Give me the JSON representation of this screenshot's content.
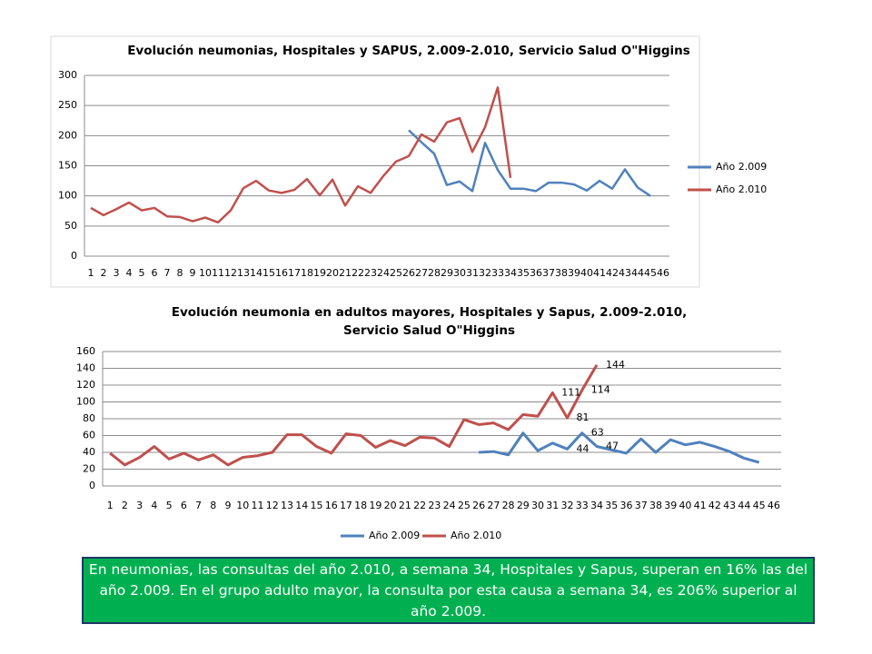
{
  "chart_data": [
    {
      "type": "line",
      "title": "Evolución neumonias, Hospitales y SAPUS, 2.009-2.010, Servicio Salud O\"Higgins",
      "categories": [
        "1",
        "2",
        "3",
        "4",
        "5",
        "6",
        "7",
        "8",
        "9",
        "10",
        "11",
        "12",
        "13",
        "14",
        "15",
        "16",
        "17",
        "18",
        "19",
        "20",
        "21",
        "22",
        "23",
        "24",
        "25",
        "26",
        "27",
        "28",
        "29",
        "30",
        "31",
        "32",
        "33",
        "34",
        "35",
        "36",
        "37",
        "38",
        "39",
        "40",
        "41",
        "42",
        "43",
        "44",
        "45",
        "46"
      ],
      "series": [
        {
          "name": "Año 2.009",
          "color": "#4f81bd",
          "values": [
            null,
            null,
            null,
            null,
            null,
            null,
            null,
            null,
            null,
            null,
            null,
            null,
            null,
            null,
            null,
            null,
            null,
            null,
            null,
            null,
            null,
            null,
            null,
            null,
            null,
            209,
            189,
            170,
            118,
            124,
            108,
            188,
            143,
            112,
            112,
            108,
            122,
            122,
            119,
            109,
            125,
            112,
            144,
            114,
            100,
            null
          ]
        },
        {
          "name": "Año 2.010",
          "color": "#c0504d",
          "values": [
            80,
            68,
            78,
            89,
            76,
            80,
            66,
            65,
            58,
            64,
            56,
            76,
            113,
            125,
            109,
            105,
            110,
            128,
            101,
            127,
            84,
            116,
            105,
            133,
            157,
            166,
            202,
            190,
            222,
            229,
            173,
            214,
            280,
            130,
            null,
            null,
            null,
            null,
            null,
            null,
            null,
            null,
            null,
            null,
            null,
            null
          ]
        }
      ],
      "ylim": [
        0,
        300
      ],
      "yticks": [
        0,
        50,
        100,
        150,
        200,
        250,
        300
      ],
      "grid": true,
      "legend": "right"
    },
    {
      "type": "line",
      "title": "Evolución neumonia en adultos mayores, Hospitales y Sapus, 2.009-2.010, Servicio Salud O\"Higgins",
      "categories": [
        "1",
        "2",
        "3",
        "4",
        "5",
        "6",
        "7",
        "8",
        "9",
        "10",
        "11",
        "12",
        "13",
        "14",
        "15",
        "16",
        "17",
        "18",
        "19",
        "20",
        "21",
        "22",
        "23",
        "24",
        "25",
        "26",
        "27",
        "28",
        "29",
        "30",
        "31",
        "32",
        "33",
        "34",
        "35",
        "36",
        "37",
        "38",
        "39",
        "40",
        "41",
        "42",
        "43",
        "44",
        "45",
        "46"
      ],
      "series": [
        {
          "name": "Año 2.009",
          "color": "#4f81bd",
          "values": [
            null,
            null,
            null,
            null,
            null,
            null,
            null,
            null,
            null,
            null,
            null,
            null,
            null,
            null,
            null,
            null,
            null,
            null,
            null,
            null,
            null,
            null,
            null,
            null,
            null,
            40,
            41,
            37,
            63,
            42,
            51,
            44,
            63,
            47,
            43,
            39,
            56,
            40,
            55,
            49,
            52,
            47,
            41,
            33,
            28,
            null
          ],
          "value_labels": [
            null,
            null,
            null,
            null,
            null,
            null,
            null,
            null,
            null,
            null,
            null,
            null,
            null,
            null,
            null,
            null,
            null,
            null,
            null,
            null,
            null,
            null,
            null,
            null,
            null,
            null,
            null,
            null,
            null,
            null,
            null,
            "44",
            "63",
            "47",
            null,
            null,
            null,
            null,
            null,
            null,
            null,
            null,
            null,
            null,
            null,
            null
          ]
        },
        {
          "name": "Año 2.010",
          "color": "#c0504d",
          "values": [
            39,
            25,
            34,
            47,
            32,
            39,
            31,
            37,
            25,
            34,
            36,
            40,
            61,
            61,
            47,
            39,
            62,
            60,
            46,
            54,
            48,
            58,
            57,
            47,
            79,
            73,
            75,
            67,
            85,
            83,
            111,
            81,
            114,
            144,
            null,
            null,
            null,
            null,
            null,
            null,
            null,
            null,
            null,
            null,
            null,
            null
          ],
          "value_labels": [
            null,
            null,
            null,
            null,
            null,
            null,
            null,
            null,
            null,
            null,
            null,
            null,
            null,
            null,
            null,
            null,
            null,
            null,
            null,
            null,
            null,
            null,
            null,
            null,
            null,
            null,
            null,
            null,
            null,
            null,
            "111",
            "81",
            "114",
            "144",
            null,
            null,
            null,
            null,
            null,
            null,
            null,
            null,
            null,
            null,
            null,
            null
          ]
        }
      ],
      "ylim": [
        0,
        160
      ],
      "yticks": [
        0,
        20,
        40,
        60,
        80,
        100,
        120,
        140,
        160
      ],
      "grid": true,
      "legend": "bottom"
    }
  ],
  "caption": "En neumonias, las consultas del año 2.010, a semana 34, Hospitales y Sapus, superan en 16% las del año 2.009. En el grupo adulto mayor, la consulta por esta causa a semana 34, es 206% superior al año 2.009."
}
